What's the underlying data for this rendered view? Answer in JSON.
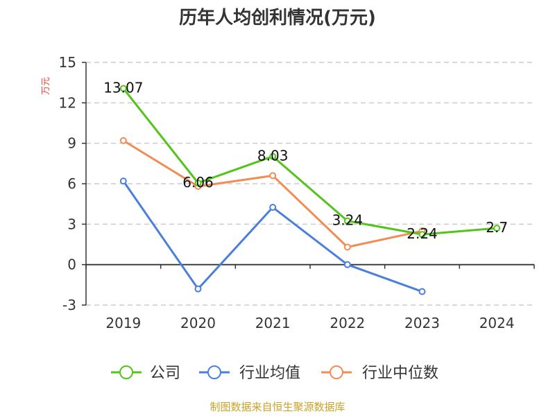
{
  "chart_data": {
    "type": "line",
    "title": "历年人均创利情况(万元)",
    "ylabel": "万元",
    "xlabel": "",
    "categories": [
      "2019",
      "2020",
      "2021",
      "2022",
      "2023",
      "2024"
    ],
    "ylim": [
      -3,
      15
    ],
    "yticks": [
      -3,
      0,
      3,
      6,
      9,
      12,
      15
    ],
    "grid": true,
    "legend_position": "bottom",
    "series": [
      {
        "name": "公司",
        "color": "#52c41a",
        "values": [
          13.07,
          6.06,
          8.03,
          3.24,
          2.24,
          2.7
        ],
        "labels": [
          "13.07",
          "6.06",
          "8.03",
          "3.24",
          "2.24",
          "2.7"
        ]
      },
      {
        "name": "行业均值",
        "color": "#4a7fdb",
        "values": [
          6.2,
          -1.8,
          4.25,
          0.0,
          -2.0,
          null
        ]
      },
      {
        "name": "行业中位数",
        "color": "#f28c54",
        "values": [
          9.2,
          5.8,
          6.6,
          1.3,
          2.5,
          null
        ]
      }
    ]
  },
  "source": "制图数据来自恒生聚源数据库"
}
